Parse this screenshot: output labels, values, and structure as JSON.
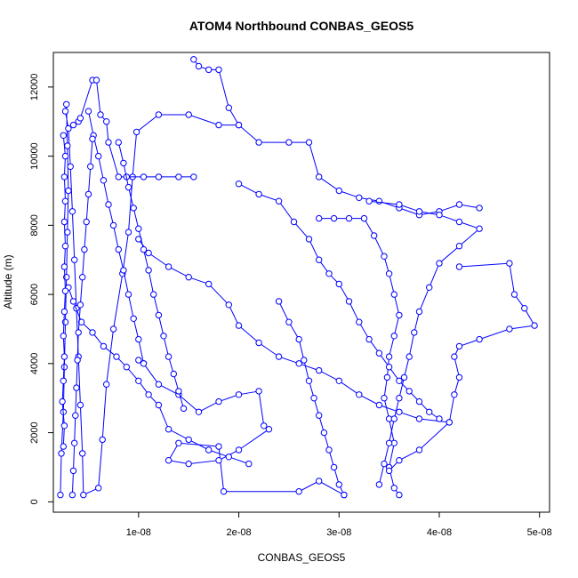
{
  "chart_data": {
    "type": "scatter",
    "title": "ATOM4 Northbound CONBAS_GEOS5",
    "xlabel": "CONBAS_GEOS5",
    "ylabel": "Altitude (m)",
    "xlim": [
      1.5e-09,
      5.1e-08
    ],
    "ylim": [
      -300,
      13000
    ],
    "x_ticks": [
      1e-08,
      2e-08,
      3e-08,
      4e-08,
      5e-08
    ],
    "x_tick_labels": [
      "1e-08",
      "2e-08",
      "3e-08",
      "4e-08",
      "5e-08"
    ],
    "y_ticks": [
      0,
      2000,
      4000,
      6000,
      8000,
      10000,
      12000
    ],
    "y_tick_labels": [
      "0",
      "2000",
      "4000",
      "6000",
      "8000",
      "10000",
      "12000"
    ],
    "grid": false,
    "legend": "none",
    "series_style": "points-and-lines",
    "color": "#0000ff",
    "series": [
      {
        "points": [
          [
            2.2e-09,
            200
          ],
          [
            2.3e-09,
            1400
          ],
          [
            2.5e-09,
            2600
          ],
          [
            2.6e-09,
            3900
          ],
          [
            2.7e-09,
            5200
          ],
          [
            2.8e-09,
            6500
          ],
          [
            2.9e-09,
            7800
          ],
          [
            3e-09,
            9000
          ],
          [
            2.9e-09,
            10300
          ],
          [
            2.8e-09,
            11500
          ],
          [
            2.7e-09,
            11300
          ],
          [
            3e-09,
            10800
          ],
          [
            3.2e-09,
            9700
          ],
          [
            3.4e-09,
            8400
          ],
          [
            3.6e-09,
            7000
          ],
          [
            3.8e-09,
            5600
          ],
          [
            4e-09,
            4200
          ],
          [
            4.2e-09,
            2800
          ],
          [
            4.4e-09,
            1400
          ],
          [
            4.5e-09,
            200
          ],
          [
            6e-09,
            400
          ],
          [
            6.4e-09,
            1800
          ],
          [
            6.8e-09,
            3400
          ],
          [
            7.5e-09,
            5000
          ],
          [
            8.4e-09,
            6600
          ],
          [
            9e-09,
            7800
          ],
          [
            9.4e-09,
            9400
          ],
          [
            9.8e-09,
            10700
          ],
          [
            1.2e-08,
            11200
          ],
          [
            1.5e-08,
            11200
          ],
          [
            1.8e-08,
            10900
          ],
          [
            2e-08,
            10900
          ]
        ]
      },
      {
        "points": [
          [
            3.5e-09,
            10900
          ],
          [
            4e-09,
            11000
          ],
          [
            4.2e-09,
            11100
          ],
          [
            5.4e-09,
            12200
          ],
          [
            5.8e-09,
            12200
          ],
          [
            6.2e-09,
            11200
          ],
          [
            6.8e-09,
            11000
          ],
          [
            7e-09,
            10400
          ],
          [
            8e-09,
            9400
          ],
          [
            8.8e-09,
            9400
          ],
          [
            1.05e-08,
            9400
          ],
          [
            1.2e-08,
            9400
          ],
          [
            1.4e-08,
            9400
          ],
          [
            1.55e-08,
            9400
          ]
        ]
      },
      {
        "points": [
          [
            1.55e-08,
            12800
          ],
          [
            1.6e-08,
            12600
          ],
          [
            1.7e-08,
            12500
          ],
          [
            1.8e-08,
            12500
          ],
          [
            1.9e-08,
            11400
          ],
          [
            2e-08,
            10900
          ],
          [
            2.2e-08,
            10400
          ],
          [
            2.5e-08,
            10400
          ],
          [
            2.7e-08,
            10400
          ],
          [
            2.8e-08,
            9400
          ],
          [
            3e-08,
            9000
          ],
          [
            3.2e-08,
            8800
          ],
          [
            3.4e-08,
            8700
          ],
          [
            3.6e-08,
            8500
          ],
          [
            3.8e-08,
            8300
          ],
          [
            4e-08,
            8400
          ],
          [
            4.2e-08,
            8600
          ],
          [
            4.4e-08,
            8500
          ]
        ]
      },
      {
        "points": [
          [
            2.8e-08,
            8200
          ],
          [
            2.95e-08,
            8200
          ],
          [
            3.1e-08,
            8200
          ],
          [
            3.25e-08,
            8200
          ],
          [
            3.35e-08,
            7700
          ],
          [
            3.45e-08,
            7100
          ],
          [
            3.5e-08,
            6600
          ],
          [
            3.55e-08,
            6000
          ],
          [
            3.6e-08,
            5400
          ],
          [
            3.55e-08,
            4800
          ],
          [
            3.5e-08,
            4200
          ],
          [
            3.48e-08,
            3600
          ],
          [
            3.45e-08,
            3000
          ],
          [
            3.5e-08,
            2400
          ],
          [
            3.55e-08,
            1700
          ],
          [
            3.5e-08,
            1000
          ],
          [
            3.55e-08,
            400
          ],
          [
            3.6e-08,
            200
          ]
        ]
      },
      {
        "points": [
          [
            4.2e-08,
            6800
          ],
          [
            4.7e-08,
            6900
          ],
          [
            4.75e-08,
            6000
          ],
          [
            4.85e-08,
            5600
          ],
          [
            4.95e-08,
            5100
          ],
          [
            4.7e-08,
            5000
          ],
          [
            4.4e-08,
            4700
          ],
          [
            4.2e-08,
            4500
          ],
          [
            4.15e-08,
            4200
          ],
          [
            4.2e-08,
            3600
          ],
          [
            4.15e-08,
            3100
          ],
          [
            4.1e-08,
            2300
          ],
          [
            3.8e-08,
            1500
          ],
          [
            3.6e-08,
            1200
          ],
          [
            3.5e-08,
            900
          ]
        ]
      },
      {
        "points": [
          [
            1e-08,
            4100
          ],
          [
            1.05e-08,
            4000
          ],
          [
            1.2e-08,
            3400
          ],
          [
            1.4e-08,
            3100
          ],
          [
            1.6e-08,
            2600
          ],
          [
            1.8e-08,
            2900
          ],
          [
            2e-08,
            3100
          ],
          [
            2.2e-08,
            3200
          ],
          [
            2.25e-08,
            2200
          ],
          [
            2.3e-08,
            2100
          ],
          [
            2e-08,
            1500
          ],
          [
            1.8e-08,
            1200
          ],
          [
            1.5e-08,
            1100
          ],
          [
            1.3e-08,
            1200
          ],
          [
            1.4e-08,
            1700
          ],
          [
            1.8e-08,
            1600
          ],
          [
            1.85e-08,
            300
          ],
          [
            2.6e-08,
            300
          ],
          [
            2.8e-08,
            600
          ],
          [
            3.05e-08,
            200
          ]
        ]
      },
      {
        "points": [
          [
            1e-08,
            7600
          ],
          [
            1.1e-08,
            7200
          ],
          [
            1.3e-08,
            6800
          ],
          [
            1.5e-08,
            6500
          ],
          [
            1.7e-08,
            6300
          ],
          [
            1.9e-08,
            5700
          ],
          [
            2e-08,
            5100
          ],
          [
            2.2e-08,
            4600
          ],
          [
            2.4e-08,
            4200
          ],
          [
            2.6e-08,
            4000
          ],
          [
            2.8e-08,
            3800
          ],
          [
            3e-08,
            3500
          ],
          [
            3.2e-08,
            3100
          ],
          [
            3.4e-08,
            2800
          ],
          [
            3.6e-08,
            2600
          ],
          [
            3.8e-08,
            2400
          ],
          [
            4.1e-08,
            2300
          ]
        ]
      },
      {
        "points": [
          [
            2e-08,
            9200
          ],
          [
            2.2e-08,
            8900
          ],
          [
            2.4e-08,
            8700
          ],
          [
            2.55e-08,
            8100
          ],
          [
            2.7e-08,
            7600
          ],
          [
            2.8e-08,
            7000
          ],
          [
            2.9e-08,
            6600
          ],
          [
            3e-08,
            6300
          ],
          [
            3.1e-08,
            5800
          ],
          [
            3.2e-08,
            5200
          ],
          [
            3.3e-08,
            4700
          ],
          [
            3.4e-08,
            4300
          ],
          [
            3.5e-08,
            3900
          ],
          [
            3.6e-08,
            3500
          ],
          [
            3.7e-08,
            3200
          ],
          [
            3.8e-08,
            2900
          ],
          [
            3.9e-08,
            2600
          ],
          [
            4e-08,
            2400
          ]
        ]
      },
      {
        "points": [
          [
            3e-09,
            6200
          ],
          [
            3.5e-09,
            5800
          ],
          [
            4.3e-09,
            5200
          ],
          [
            5.4e-09,
            4900
          ],
          [
            6.5e-09,
            4500
          ],
          [
            7.8e-09,
            4200
          ],
          [
            8.8e-09,
            3900
          ],
          [
            1e-08,
            3500
          ],
          [
            1.1e-08,
            3100
          ],
          [
            1.2e-08,
            2800
          ],
          [
            1.3e-08,
            2100
          ],
          [
            1.5e-08,
            1800
          ],
          [
            1.7e-08,
            1500
          ],
          [
            1.9e-08,
            1300
          ],
          [
            2.1e-08,
            1100
          ]
        ]
      },
      {
        "points": [
          [
            3.3e-08,
            8700
          ],
          [
            3.6e-08,
            8600
          ],
          [
            3.8e-08,
            8400
          ],
          [
            4e-08,
            8300
          ],
          [
            4.2e-08,
            8100
          ],
          [
            4.4e-08,
            7900
          ],
          [
            4.2e-08,
            7400
          ],
          [
            4e-08,
            6900
          ],
          [
            3.9e-08,
            6200
          ],
          [
            3.8e-08,
            5500
          ],
          [
            3.75e-08,
            4900
          ],
          [
            3.7e-08,
            4200
          ],
          [
            3.65e-08,
            3600
          ],
          [
            3.6e-08,
            3000
          ],
          [
            3.55e-08,
            2400
          ],
          [
            3.5e-08,
            1700
          ],
          [
            3.45e-08,
            1100
          ],
          [
            3.4e-08,
            500
          ]
        ]
      },
      {
        "points": [
          [
            8e-09,
            10400
          ],
          [
            8.5e-09,
            9800
          ],
          [
            9e-09,
            9100
          ],
          [
            9.5e-09,
            8500
          ],
          [
            1e-08,
            7900
          ],
          [
            1.05e-08,
            7300
          ],
          [
            1.1e-08,
            6700
          ],
          [
            1.15e-08,
            6000
          ],
          [
            1.2e-08,
            5400
          ],
          [
            1.25e-08,
            4800
          ],
          [
            1.3e-08,
            4200
          ],
          [
            1.35e-08,
            3700
          ],
          [
            1.4e-08,
            3200
          ],
          [
            1.45e-08,
            2700
          ]
        ]
      },
      {
        "points": [
          [
            5e-09,
            11300
          ],
          [
            5.5e-09,
            10600
          ],
          [
            6e-09,
            10000
          ],
          [
            6.5e-09,
            9300
          ],
          [
            7e-09,
            8600
          ],
          [
            7.5e-09,
            8000
          ],
          [
            8e-09,
            7300
          ],
          [
            8.5e-09,
            6700
          ],
          [
            9e-09,
            6000
          ],
          [
            9.5e-09,
            5300
          ],
          [
            1e-08,
            4700
          ],
          [
            1.05e-08,
            4000
          ]
        ]
      },
      {
        "points": [
          [
            2.4e-08,
            5800
          ],
          [
            2.5e-08,
            5200
          ],
          [
            2.6e-08,
            4700
          ],
          [
            2.65e-08,
            4100
          ],
          [
            2.7e-08,
            3500
          ],
          [
            2.75e-08,
            3000
          ],
          [
            2.8e-08,
            2500
          ],
          [
            2.85e-08,
            2000
          ],
          [
            2.9e-08,
            1500
          ],
          [
            2.95e-08,
            1000
          ],
          [
            3e-08,
            500
          ],
          [
            3.05e-08,
            200
          ]
        ]
      },
      {
        "points": [
          [
            2.5e-09,
            1600
          ],
          [
            2.6e-09,
            2200
          ],
          [
            2.4e-09,
            2900
          ],
          [
            2.5e-09,
            3500
          ],
          [
            2.6e-09,
            4200
          ],
          [
            2.5e-09,
            4800
          ],
          [
            2.6e-09,
            5500
          ],
          [
            2.7e-09,
            6100
          ],
          [
            2.6e-09,
            6800
          ],
          [
            2.7e-09,
            7400
          ],
          [
            2.6e-09,
            8100
          ],
          [
            2.7e-09,
            8700
          ],
          [
            2.6e-09,
            9400
          ],
          [
            2.7e-09,
            10000
          ],
          [
            2.5e-09,
            10600
          ]
        ]
      },
      {
        "points": [
          [
            3.4e-09,
            200
          ],
          [
            3.5e-09,
            900
          ],
          [
            3.6e-09,
            1700
          ],
          [
            3.7e-09,
            2500
          ],
          [
            3.8e-09,
            3300
          ],
          [
            3.9e-09,
            4100
          ],
          [
            4e-09,
            4900
          ],
          [
            4.2e-09,
            5700
          ],
          [
            4.4e-09,
            6500
          ],
          [
            4.6e-09,
            7300
          ],
          [
            4.8e-09,
            8100
          ],
          [
            5e-09,
            8900
          ],
          [
            5.2e-09,
            9700
          ],
          [
            5.4e-09,
            10500
          ]
        ]
      }
    ]
  }
}
